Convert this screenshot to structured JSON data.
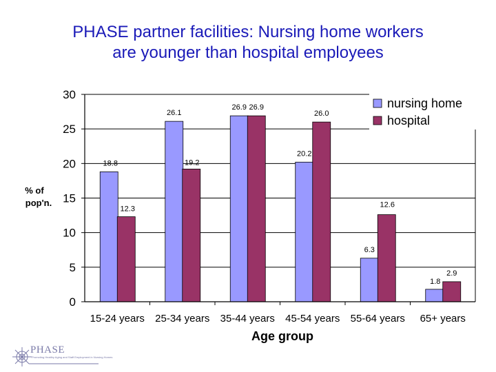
{
  "page": {
    "title_line1": "PHASE partner facilities:  Nursing home workers",
    "title_line2": "are younger than hospital employees"
  },
  "logo": {
    "name": "PHASE",
    "tagline": "Promoting Healthy Aging and Staff Employment in Nursing Homes"
  },
  "chart_data": {
    "type": "bar",
    "title": "PHASE partner facilities:  Nursing home workers are younger than hospital employees",
    "xlabel": "Age group",
    "ylabel": "% of pop'n.",
    "ylim": [
      0,
      30
    ],
    "yticks": [
      "0",
      "5",
      "10",
      "15",
      "20",
      "25",
      "30"
    ],
    "grid": "horizontal",
    "legend_position": "top-right",
    "categories": [
      "15-24 years",
      "25-34 years",
      "35-44 years",
      "45-54 years",
      "55-64 years",
      "65+ years"
    ],
    "series": [
      {
        "name": "nursing home",
        "color": "#9999ff",
        "values": [
          18.8,
          26.1,
          26.9,
          20.2,
          6.3,
          1.8
        ],
        "labels": [
          "18.8",
          "26.1",
          "26.9",
          "20.2",
          "6.3",
          "1.8"
        ]
      },
      {
        "name": "hospital",
        "color": "#993366",
        "values": [
          12.3,
          19.2,
          26.9,
          26.0,
          12.6,
          2.9
        ],
        "labels": [
          "12.3",
          "19.2",
          "26.9",
          "26.0",
          "12.6",
          "2.9"
        ]
      }
    ]
  }
}
